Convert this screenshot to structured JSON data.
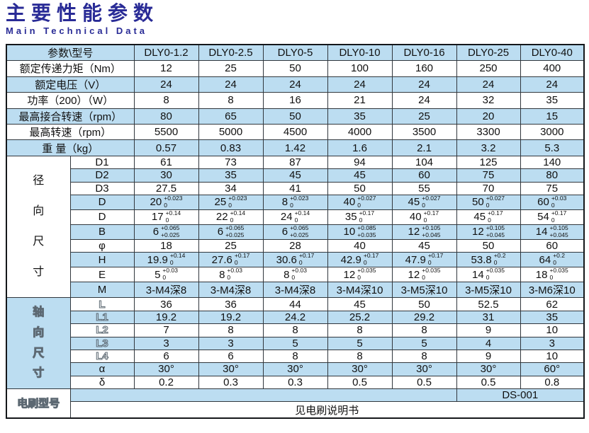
{
  "title": {
    "zh": "主要性能参数",
    "en": "Main Technical Data"
  },
  "colors": {
    "title_blue": "#292b96",
    "stripe_blue": "#bcddf1",
    "grid_line": "#31373d",
    "text": "#111111"
  },
  "table": {
    "corner_label": "参数\\型号",
    "models": [
      "DLY0-1.2",
      "DLY0-2.5",
      "DLY0-5",
      "DLY0-10",
      "DLY0-16",
      "DLY0-25",
      "DLY0-40"
    ],
    "param_rows": [
      {
        "label": "额定传递力矩（Nm）",
        "values": [
          "12",
          "25",
          "50",
          "100",
          "160",
          "250",
          "400"
        ]
      },
      {
        "label": "额定电压（V）",
        "values": [
          "24",
          "24",
          "24",
          "24",
          "24",
          "24",
          "24"
        ]
      },
      {
        "label": "功率（200）（W）",
        "values": [
          "8",
          "8",
          "16",
          "21",
          "24",
          "32",
          "35"
        ]
      },
      {
        "label": "最高接合转速（rpm）",
        "values": [
          "80",
          "65",
          "50",
          "35",
          "25",
          "20",
          "15"
        ]
      },
      {
        "label": "最高转速（rpm）",
        "values": [
          "5500",
          "5000",
          "4500",
          "4000",
          "3500",
          "3300",
          "3000"
        ]
      },
      {
        "label": "重 量（kg）",
        "values": [
          "0.57",
          "0.83",
          "1.42",
          "1.6",
          "2.1",
          "3.2",
          "5.3"
        ]
      }
    ],
    "radial": {
      "group_label": "径向尺寸",
      "rows": [
        {
          "label": "D1",
          "values": [
            "61",
            "73",
            "87",
            "94",
            "104",
            "125",
            "140"
          ]
        },
        {
          "label": "D2",
          "values": [
            "30",
            "35",
            "45",
            "45",
            "60",
            "75",
            "80"
          ]
        },
        {
          "label": "D3",
          "values": [
            "27.5",
            "34",
            "41",
            "50",
            "55",
            "70",
            "75"
          ]
        },
        {
          "label": "D",
          "values": [
            {
              "v": "20",
              "top": "+0.023",
              "bot": "0"
            },
            {
              "v": "25",
              "top": "+0.023",
              "bot": "0"
            },
            {
              "v": "8",
              "top": "+0.023",
              "bot": "0"
            },
            {
              "v": "40",
              "top": "+0.027",
              "bot": "0"
            },
            {
              "v": "45",
              "top": "+0.027",
              "bot": "0"
            },
            {
              "v": "50",
              "top": "+0.027",
              "bot": "0"
            },
            {
              "v": "60",
              "top": "+0.03",
              "bot": "0"
            }
          ]
        },
        {
          "label": "D",
          "values": [
            {
              "v": "17",
              "top": "+0.14",
              "bot": "0"
            },
            {
              "v": "22",
              "top": "+0.14",
              "bot": "0"
            },
            {
              "v": "24",
              "top": "+0.14",
              "bot": "0"
            },
            {
              "v": "35",
              "top": "+0.17",
              "bot": "0"
            },
            {
              "v": "40",
              "top": "+0.17",
              "bot": "0"
            },
            {
              "v": "45",
              "top": "+0.17",
              "bot": "0"
            },
            {
              "v": "54",
              "top": "+0.17",
              "bot": "0"
            }
          ]
        },
        {
          "label": "B",
          "values": [
            {
              "v": "6",
              "top": "+0.065",
              "bot": "+0.025"
            },
            {
              "v": "6",
              "top": "+0.065",
              "bot": "+0.025"
            },
            {
              "v": "6",
              "top": "+0.065",
              "bot": "+0.025"
            },
            {
              "v": "10",
              "top": "+0.085",
              "bot": "+0.035"
            },
            {
              "v": "12",
              "top": "+0.105",
              "bot": "+0.045"
            },
            {
              "v": "12",
              "top": "+0.105",
              "bot": "+0.045"
            },
            {
              "v": "14",
              "top": "+0.105",
              "bot": "+0.045"
            }
          ]
        },
        {
          "label": "φ",
          "values": [
            "18",
            "25",
            "28",
            "40",
            "45",
            "50",
            "60"
          ]
        },
        {
          "label": "H",
          "values": [
            {
              "v": "19.9",
              "top": "+0.14",
              "bot": "0"
            },
            {
              "v": "27.6",
              "top": "+0.17",
              "bot": "0"
            },
            {
              "v": "30.6",
              "top": "+0.17",
              "bot": "0"
            },
            {
              "v": "42.9",
              "top": "+0.17",
              "bot": "0"
            },
            {
              "v": "47.9",
              "top": "+0.17",
              "bot": "0"
            },
            {
              "v": "53.8",
              "top": "+0.2",
              "bot": "0"
            },
            {
              "v": "64",
              "top": "+0.2",
              "bot": "0"
            }
          ]
        },
        {
          "label": "E",
          "values": [
            {
              "v": "5",
              "top": "+0.03",
              "bot": "0"
            },
            {
              "v": "8",
              "top": "+0.03",
              "bot": "0"
            },
            {
              "v": "8",
              "top": "+0.03",
              "bot": "0"
            },
            {
              "v": "12",
              "top": "+0.035",
              "bot": "0"
            },
            {
              "v": "12",
              "top": "+0.035",
              "bot": "0"
            },
            {
              "v": "14",
              "top": "+0.035",
              "bot": "0"
            },
            {
              "v": "18",
              "top": "+0.035",
              "bot": "0"
            }
          ]
        },
        {
          "label": "M",
          "values": [
            "3-M4深8",
            "3-M4深8",
            "3-M4深8",
            "3-M4深10",
            "3-M5深10",
            "3-M5深10",
            "3-M6深10"
          ]
        }
      ]
    },
    "axial": {
      "group_label": "轴向尺寸",
      "rows": [
        {
          "label": "L",
          "outline": true,
          "values": [
            "36",
            "36",
            "44",
            "45",
            "50",
            "52.5",
            "62"
          ]
        },
        {
          "label": "L1",
          "outline": true,
          "values": [
            "19.2",
            "19.2",
            "24.2",
            "25.2",
            "29.2",
            "31",
            "35"
          ]
        },
        {
          "label": "L2",
          "outline": true,
          "values": [
            "7",
            "8",
            "8",
            "8",
            "8",
            "9",
            "10"
          ]
        },
        {
          "label": "L3",
          "outline": true,
          "values": [
            "3",
            "3",
            "5",
            "5",
            "5",
            "4",
            "3"
          ]
        },
        {
          "label": "L4",
          "outline": true,
          "values": [
            "6",
            "6",
            "8",
            "8",
            "8",
            "9",
            "10"
          ]
        },
        {
          "label": "α",
          "outline": false,
          "values": [
            "30°",
            "30°",
            "30°",
            "30°",
            "30°",
            "30°",
            "60°"
          ]
        },
        {
          "label": "δ",
          "outline": false,
          "values": [
            "0.2",
            "0.3",
            "0.3",
            "0.5",
            "0.5",
            "0.5",
            "0.8"
          ]
        }
      ]
    },
    "brush": {
      "label": "电刷型号",
      "model": "DS-001",
      "note": "见电刷说明书"
    }
  }
}
